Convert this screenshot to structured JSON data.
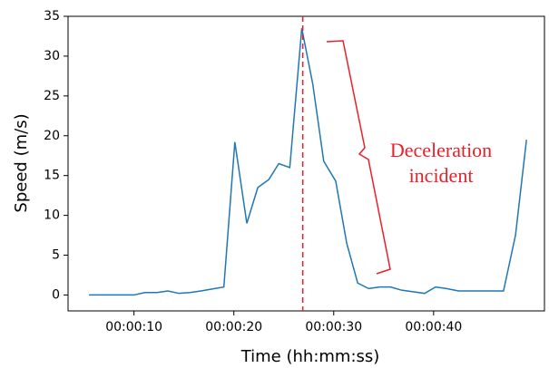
{
  "chart_data": {
    "type": "line",
    "xlabel": "Time (hh:mm:ss)",
    "ylabel": "Speed (m/s)",
    "x": [
      5.5,
      10,
      11.1,
      12.3,
      13.4,
      14.5,
      15.6,
      16.7,
      19,
      20.1,
      21.3,
      22.4,
      23.5,
      24.5,
      25.6,
      26.8,
      27.9,
      29,
      30.2,
      31.3,
      32.4,
      33.5,
      34.6,
      35.7,
      36.8,
      39.1,
      40.2,
      41.3,
      42.5,
      47,
      48.2,
      49.3
    ],
    "series": [
      {
        "color": "#1f77b4",
        "values": [
          0,
          0,
          0.3,
          0.3,
          0.5,
          0.2,
          0.3,
          0.5,
          1.0,
          19.2,
          9.0,
          13.5,
          14.5,
          16.5,
          16.0,
          33.5,
          26.5,
          16.8,
          14.3,
          6.5,
          1.5,
          0.8,
          1.0,
          1.0,
          0.6,
          0.2,
          1.0,
          0.8,
          0.5,
          0.5,
          7.5,
          19.5
        ]
      }
    ],
    "xlim": [
      3.4,
      51.1
    ],
    "xticks": [
      {
        "value": 10,
        "label": "00:00:10"
      },
      {
        "value": 20,
        "label": "00:00:20"
      },
      {
        "value": 30,
        "label": "00:00:30"
      },
      {
        "value": 40,
        "label": "00:00:40"
      }
    ],
    "ylim": [
      -2,
      35
    ],
    "yticks": [
      0,
      5,
      10,
      15,
      20,
      25,
      30,
      35
    ],
    "grid": false,
    "vline": {
      "x": 26.9,
      "color": "#e8202a"
    },
    "annotation": {
      "lines": [
        "Deceleration",
        "incident"
      ],
      "color": "#e8202a"
    }
  }
}
